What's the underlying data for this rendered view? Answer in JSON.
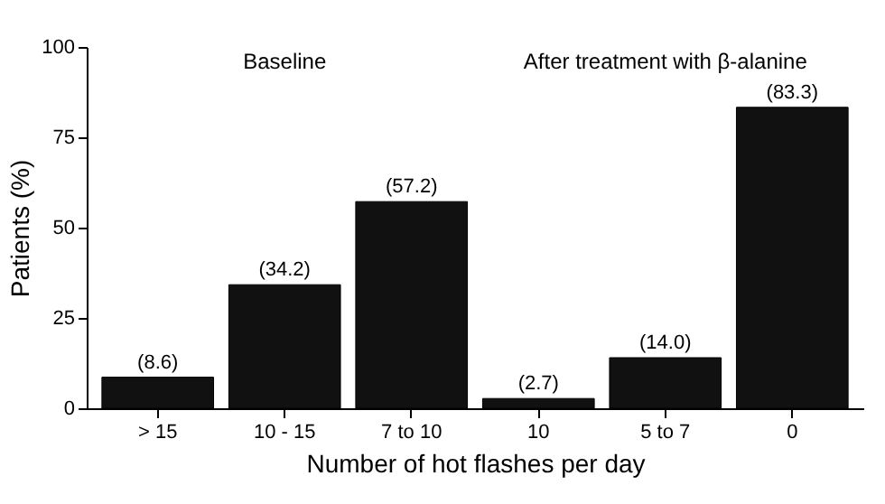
{
  "chart_data": {
    "type": "bar",
    "xlabel": "Number of hot flashes per day",
    "ylabel": "Patients (%)",
    "categories": [
      "> 15",
      "10 - 15",
      "7 to 10",
      "10",
      "5 to 7",
      "0"
    ],
    "values": [
      8.6,
      34.2,
      57.2,
      2.7,
      14.0,
      83.3
    ],
    "value_labels": [
      "(8.6)",
      "(34.2)",
      "(57.2)",
      "(2.7)",
      "(14.0)",
      "(83.3)"
    ],
    "color": "#111111",
    "ylim": [
      0,
      100
    ],
    "yticks": [
      0,
      25,
      50,
      75,
      100
    ],
    "annotations": [
      "Baseline",
      "After treatment with β-alanine"
    ]
  }
}
